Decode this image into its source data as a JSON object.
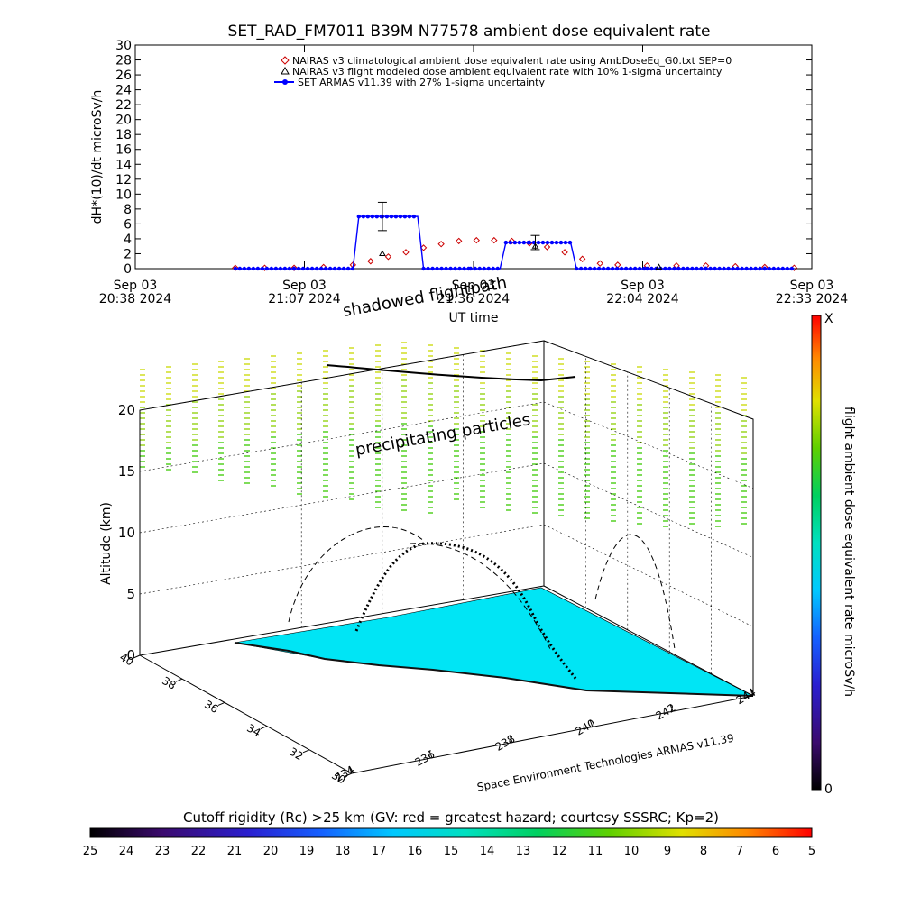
{
  "title": "SET_RAD_FM7011   B39M N77578 ambient dose equivalent rate",
  "chart_data": [
    {
      "type": "line",
      "title": "SET_RAD_FM7011   B39M N77578 ambient dose equivalent rate",
      "ylabel": "dH*(10)/dt microSv/h",
      "xlabel": "UT time",
      "ylim": [
        0,
        30
      ],
      "y_ticks": [
        "0",
        "2",
        "4",
        "6",
        "8",
        "10",
        "12",
        "14",
        "16",
        "18",
        "20",
        "22",
        "24",
        "26",
        "28",
        "30"
      ],
      "x_ticks": [
        {
          "date": "Sep 03",
          "time": "20:38 2024"
        },
        {
          "date": "Sep 03",
          "time": "21:07 2024"
        },
        {
          "date": "Sep 03",
          "time": "21:36 2024"
        },
        {
          "date": "Sep 03",
          "time": "22:04 2024"
        },
        {
          "date": "Sep 03",
          "time": "22:33 2024"
        }
      ],
      "legend_position": "top-right",
      "series": [
        {
          "name": "NAIRAS v3 climatological ambient dose equivalent rate using AmbDoseEq_G0.txt SEP=0",
          "color": "#cc0000",
          "marker": "diamond",
          "x": [
            "20:55",
            "21:00",
            "21:05",
            "21:10",
            "21:15",
            "21:18",
            "21:21",
            "21:24",
            "21:27",
            "21:30",
            "21:33",
            "21:36",
            "21:39",
            "21:42",
            "21:45",
            "21:48",
            "21:51",
            "21:54",
            "21:57",
            "22:00",
            "22:05",
            "22:10",
            "22:15",
            "22:20",
            "22:25",
            "22:30"
          ],
          "y": [
            0.1,
            0.1,
            0.1,
            0.2,
            0.5,
            1.0,
            1.6,
            2.2,
            2.8,
            3.3,
            3.7,
            3.8,
            3.8,
            3.7,
            3.4,
            2.9,
            2.2,
            1.3,
            0.7,
            0.5,
            0.4,
            0.4,
            0.4,
            0.3,
            0.2,
            0.1
          ]
        },
        {
          "name": "NAIRAS v3 flight modeled dose ambient equivalent rate with 10% 1-sigma uncertainty",
          "color": "#000000",
          "marker": "triangle",
          "x": [
            "21:20",
            "21:46",
            "22:07"
          ],
          "y": [
            2.0,
            3.0,
            0.2
          ]
        },
        {
          "name": "SET ARMAS v11.39 with 27% 1-sigma uncertainty",
          "color": "#0000ff",
          "marker": "circle",
          "x": [
            "20:55",
            "21:05",
            "21:15",
            "21:16",
            "21:20",
            "21:26",
            "21:27",
            "21:35",
            "21:40",
            "21:41",
            "21:45",
            "21:52",
            "21:53",
            "22:05",
            "22:15",
            "22:25",
            "22:30"
          ],
          "y": [
            0,
            0,
            0,
            7,
            7,
            7,
            0,
            0,
            0,
            3.5,
            3.5,
            3.5,
            0,
            0,
            0,
            0,
            0
          ]
        }
      ],
      "error_bars": [
        {
          "x": "21:20",
          "y": 7.0,
          "err": 1.9
        },
        {
          "x": "21:46",
          "y": 3.5,
          "err": 0.95
        }
      ]
    },
    {
      "type": "area",
      "zlabel": "Altitude (km)",
      "z_ticks": [
        "0",
        "5",
        "10",
        "15",
        "20"
      ],
      "lat_ticks": [
        "30",
        "32",
        "34",
        "36",
        "38",
        "40"
      ],
      "lon_ticks": [
        "234",
        "236",
        "238",
        "240",
        "242",
        "244"
      ],
      "annotations": [
        "shadowed flightpath",
        "precipitating particles"
      ],
      "credit": "Space Environment Technologies ARMAS v11.39",
      "colorbar": {
        "label": "flight ambient dose equivalent rate microSv/h",
        "top": "X",
        "bottom": "0"
      },
      "flight_track": [
        {
          "lat": 40.0,
          "lon": 236.0,
          "alt_km": 0.5
        },
        {
          "lat": 37.0,
          "lon": 238.0,
          "alt_km": 5
        },
        {
          "lat": 35.5,
          "lon": 238.8,
          "alt_km": 10
        },
        {
          "lat": 34.0,
          "lon": 239.5,
          "alt_km": 10
        },
        {
          "lat": 33.0,
          "lon": 240.0,
          "alt_km": 5
        },
        {
          "lat": 32.0,
          "lon": 240.8,
          "alt_km": 0.5
        }
      ]
    },
    {
      "type": "heatmap",
      "title": "Cutoff rigidity (Rc) >25 km (GV: red = greatest hazard; courtesy SSSRC; Kp=2)",
      "ticks": [
        "25",
        "24",
        "23",
        "22",
        "21",
        "20",
        "19",
        "18",
        "17",
        "16",
        "15",
        "14",
        "13",
        "12",
        "11",
        "10",
        "9",
        "8",
        "7",
        "6",
        "5"
      ],
      "vmin": 5,
      "vmax": 25
    }
  ]
}
